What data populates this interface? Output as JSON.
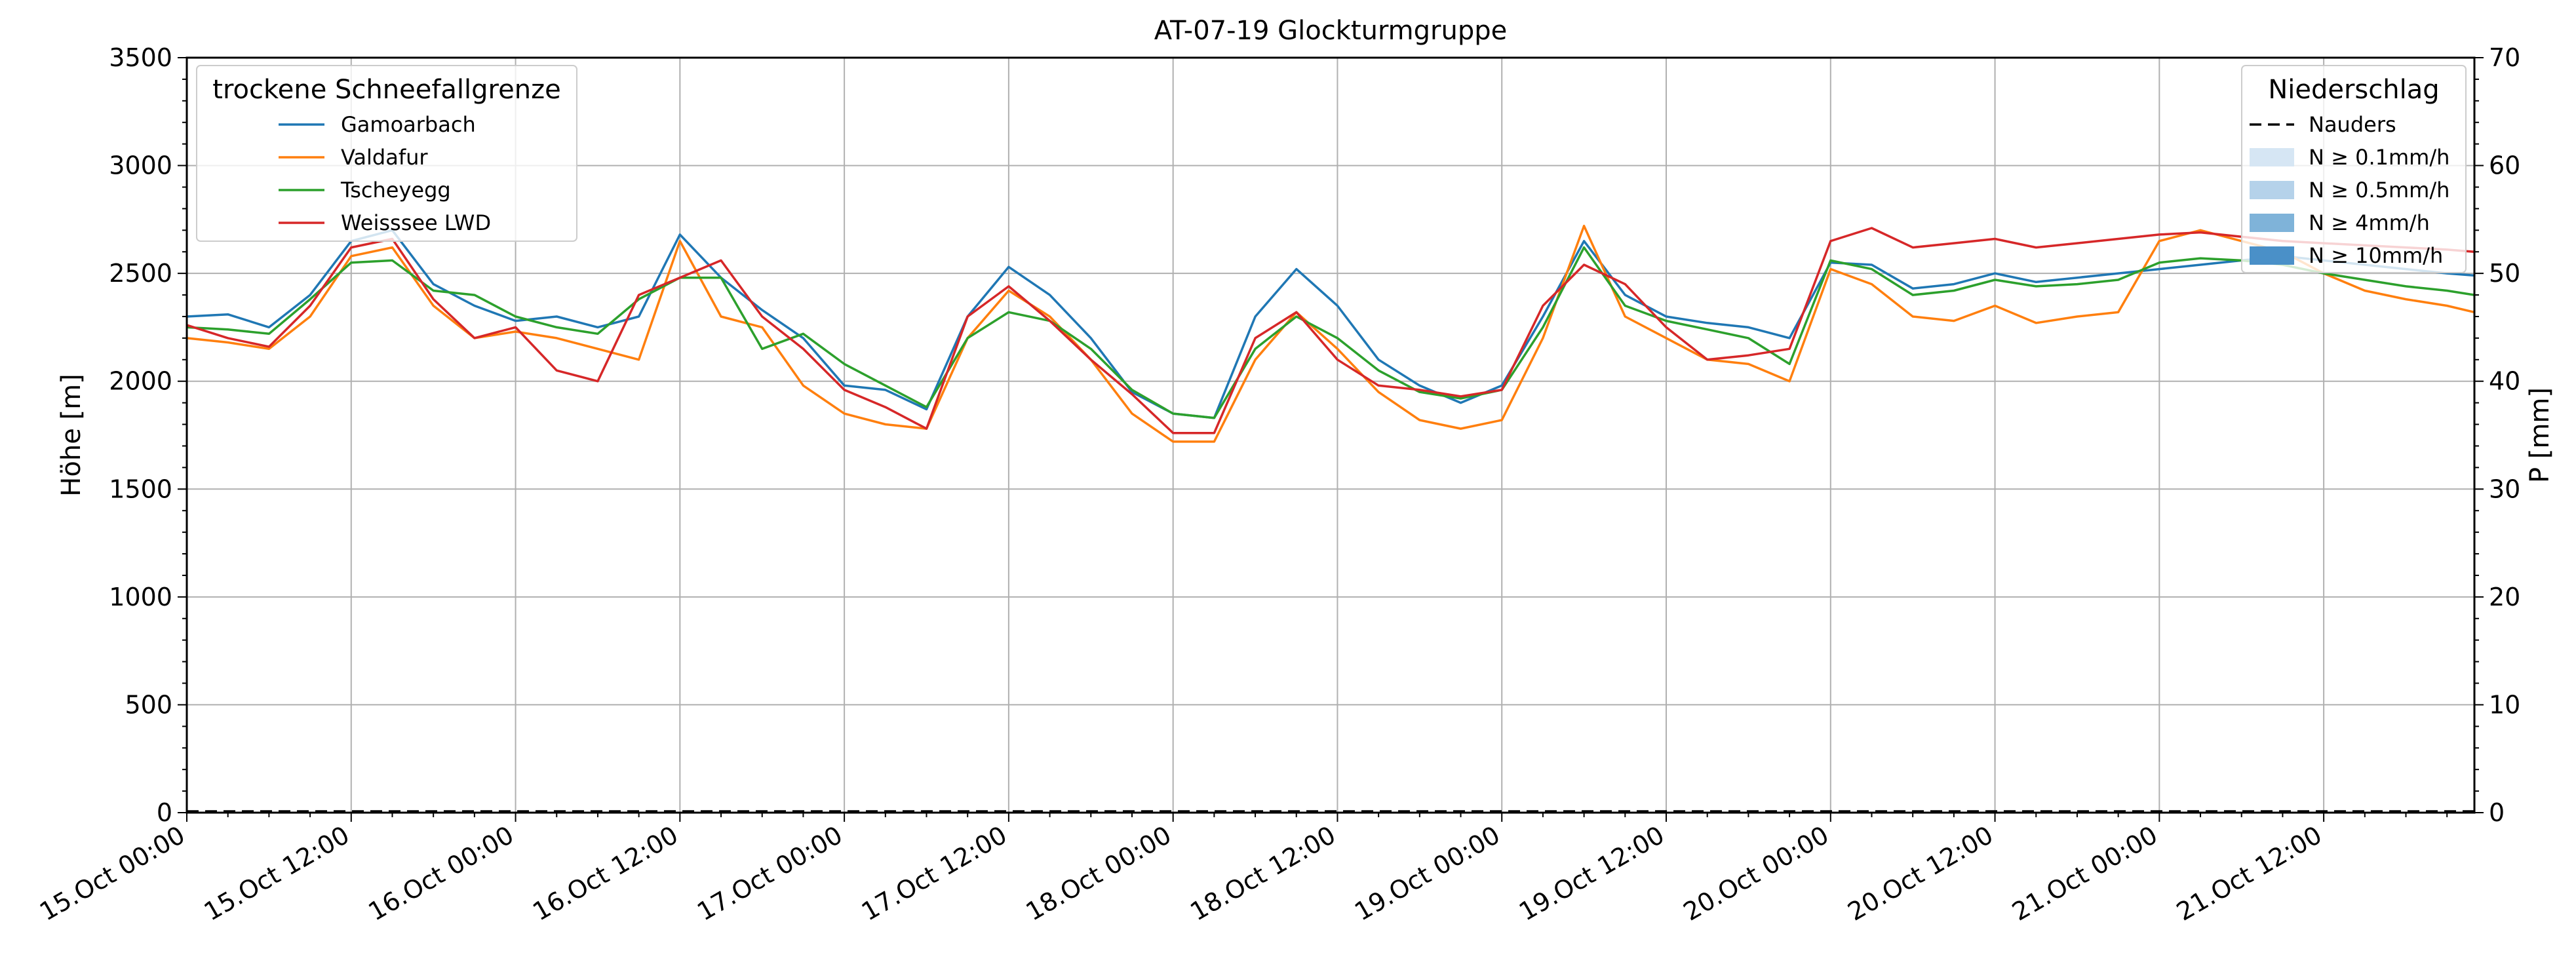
{
  "chart_data": {
    "type": "line",
    "title": "AT-07-19 Glockturmgruppe",
    "ylabel_left": "Höhe [m]",
    "ylabel_right": "P [mm]",
    "ylim_left": [
      0,
      3500
    ],
    "ylim_right": [
      0,
      70
    ],
    "yticks_left": [
      "0",
      "500",
      "1000",
      "1500",
      "2000",
      "2500",
      "3000",
      "3500"
    ],
    "yticks_right": [
      "0",
      "10",
      "20",
      "30",
      "40",
      "50",
      "60",
      "70"
    ],
    "xlim_hours": [
      0,
      167
    ],
    "xticks": [
      "15.Oct 00:00",
      "15.Oct 12:00",
      "16.Oct 00:00",
      "16.Oct 12:00",
      "17.Oct 00:00",
      "17.Oct 12:00",
      "18.Oct 00:00",
      "18.Oct 12:00",
      "19.Oct 00:00",
      "19.Oct 12:00",
      "20.Oct 00:00",
      "20.Oct 12:00",
      "21.Oct 00:00",
      "21.Oct 12:00"
    ],
    "grid": true,
    "legend_left": {
      "title": "trockene Schneefallgrenze",
      "position": "top-left"
    },
    "legend_right": {
      "title": "Niederschlag",
      "position": "top-right",
      "entries": [
        {
          "label": "Nauders",
          "style": "dashed",
          "color": "#000000"
        },
        {
          "label": "N ≥ 0.1mm/h",
          "style": "patch",
          "color": "#d6e6f4"
        },
        {
          "label": "N ≥ 0.5mm/h",
          "style": "patch",
          "color": "#b5d2ea"
        },
        {
          "label": "N ≥ 4mm/h",
          "style": "patch",
          "color": "#7fb3d9"
        },
        {
          "label": "N ≥ 10mm/h",
          "style": "patch",
          "color": "#4a90c8"
        }
      ]
    },
    "precipitation": {
      "name": "Nauders",
      "value_mm": 0
    },
    "series_x_hours": [
      0,
      3,
      6,
      9,
      12,
      15,
      18,
      21,
      24,
      27,
      30,
      33,
      36,
      39,
      42,
      45,
      48,
      51,
      54,
      57,
      60,
      63,
      66,
      69,
      72,
      75,
      78,
      81,
      84,
      87,
      90,
      93,
      96,
      99,
      102,
      105,
      108,
      111,
      114,
      117,
      120,
      123,
      126,
      129,
      132,
      135,
      138,
      141,
      144,
      147,
      150,
      153,
      156,
      159,
      162,
      165,
      167
    ],
    "series": [
      {
        "name": "Gamoarbach",
        "color": "#1f77b4",
        "values": [
          2300,
          2310,
          2250,
          2400,
          2650,
          2700,
          2450,
          2350,
          2280,
          2300,
          2250,
          2300,
          2680,
          2480,
          2330,
          2200,
          1980,
          1960,
          1870,
          2300,
          2530,
          2400,
          2200,
          1950,
          1850,
          1830,
          2300,
          2520,
          2350,
          2100,
          1980,
          1900,
          1980,
          2300,
          2650,
          2400,
          2300,
          2270,
          2250,
          2200,
          2550,
          2540,
          2430,
          2450,
          2500,
          2460,
          2480,
          2500,
          2520,
          2540,
          2560,
          2580,
          2560,
          2540,
          2520,
          2500,
          2490
        ]
      },
      {
        "name": "Valdafur",
        "color": "#ff7f0e",
        "values": [
          2200,
          2180,
          2150,
          2300,
          2580,
          2620,
          2350,
          2200,
          2230,
          2200,
          2150,
          2100,
          2650,
          2300,
          2250,
          1980,
          1850,
          1800,
          1780,
          2200,
          2420,
          2300,
          2100,
          1850,
          1720,
          1720,
          2100,
          2320,
          2150,
          1950,
          1820,
          1780,
          1820,
          2200,
          2720,
          2300,
          2200,
          2100,
          2080,
          2000,
          2520,
          2450,
          2300,
          2280,
          2350,
          2270,
          2300,
          2320,
          2650,
          2700,
          2650,
          2600,
          2500,
          2420,
          2380,
          2350,
          2320
        ]
      },
      {
        "name": "Tscheyegg",
        "color": "#2ca02c",
        "values": [
          2250,
          2240,
          2220,
          2380,
          2550,
          2560,
          2420,
          2400,
          2300,
          2250,
          2220,
          2380,
          2480,
          2480,
          2150,
          2220,
          2080,
          1980,
          1880,
          2200,
          2320,
          2280,
          2150,
          1960,
          1850,
          1830,
          2150,
          2300,
          2200,
          2050,
          1950,
          1920,
          1960,
          2250,
          2620,
          2350,
          2280,
          2240,
          2200,
          2080,
          2560,
          2520,
          2400,
          2420,
          2470,
          2440,
          2450,
          2470,
          2550,
          2570,
          2560,
          2540,
          2500,
          2470,
          2440,
          2420,
          2400
        ]
      },
      {
        "name": "Weisssee LWD",
        "color": "#d62728",
        "values": [
          2260,
          2200,
          2160,
          2350,
          2620,
          2660,
          2380,
          2200,
          2250,
          2050,
          2000,
          2400,
          2480,
          2560,
          2300,
          2150,
          1960,
          1880,
          1780,
          2300,
          2440,
          2280,
          2100,
          1940,
          1760,
          1760,
          2200,
          2320,
          2100,
          1980,
          1960,
          1930,
          1960,
          2350,
          2540,
          2450,
          2250,
          2100,
          2120,
          2150,
          2650,
          2710,
          2620,
          2640,
          2660,
          2620,
          2640,
          2660,
          2680,
          2690,
          2670,
          2650,
          2640,
          2630,
          2620,
          2610,
          2600
        ]
      }
    ]
  }
}
